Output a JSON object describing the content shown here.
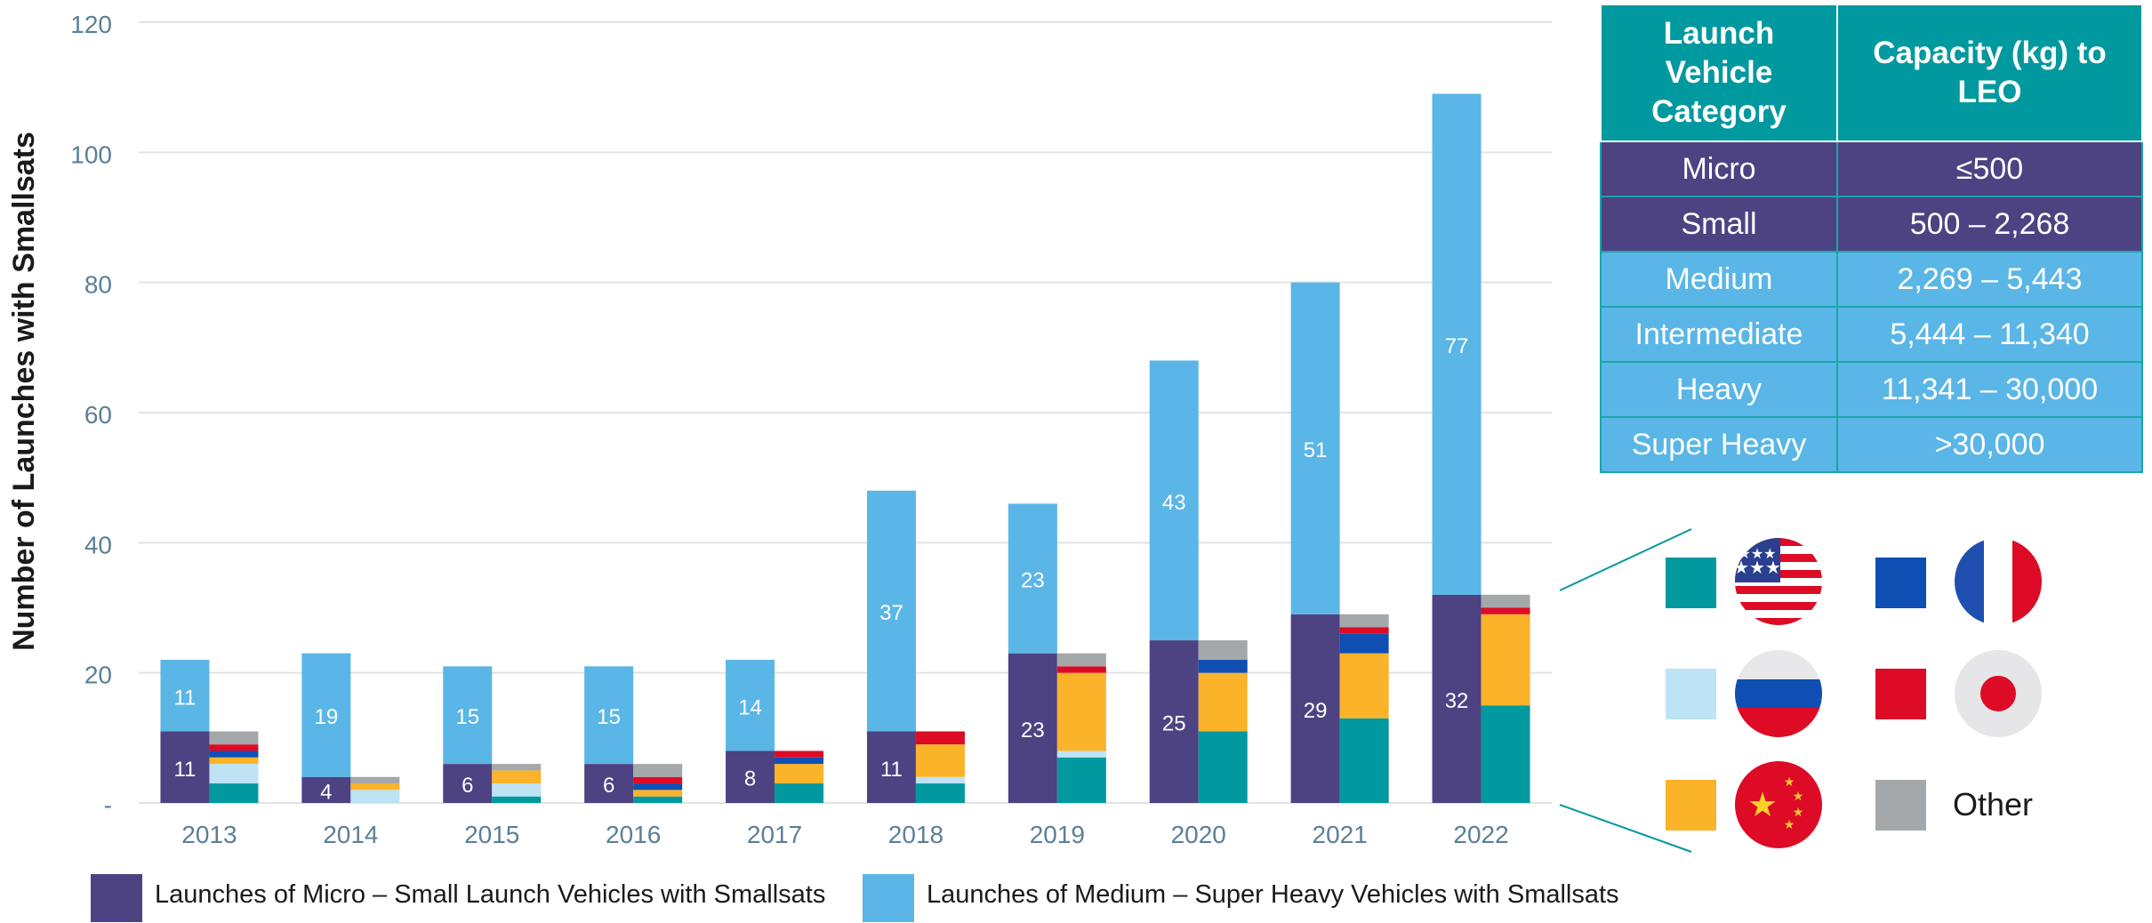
{
  "chart_data": {
    "type": "bar",
    "ylabel": "Number of Launches with Smallsats",
    "xlabel": "",
    "ylim": [
      0,
      120
    ],
    "yticks": [
      0,
      20,
      40,
      60,
      80,
      100,
      120
    ],
    "ytick_labels": [
      "-",
      "20",
      "40",
      "60",
      "80",
      "100",
      "120"
    ],
    "grid": true,
    "categories": [
      "2013",
      "2014",
      "2015",
      "2016",
      "2017",
      "2018",
      "2019",
      "2020",
      "2021",
      "2022"
    ],
    "stacked_series": [
      {
        "name": "Launches of Micro – Small Launch Vehicles with Smallsats",
        "color": "#4d4282",
        "values": [
          11,
          4,
          6,
          6,
          8,
          11,
          23,
          25,
          29,
          32
        ]
      },
      {
        "name": "Launches of Medium – Super Heavy Vehicles with Smallsats",
        "color": "#5ab6e6",
        "values": [
          11,
          19,
          15,
          15,
          14,
          37,
          23,
          43,
          51,
          77
        ]
      }
    ],
    "country_breakdown": [
      {
        "country": "USA",
        "color": "#00999f",
        "values": [
          3,
          0,
          1,
          1,
          3,
          3,
          7,
          11,
          13,
          15
        ]
      },
      {
        "country": "Russia",
        "color": "#bee3f5",
        "values": [
          3,
          2,
          2,
          0,
          0,
          1,
          1,
          0,
          0,
          0
        ]
      },
      {
        "country": "China",
        "color": "#fbb32a",
        "values": [
          1,
          1,
          2,
          1,
          3,
          5,
          12,
          9,
          10,
          14
        ]
      },
      {
        "country": "France",
        "color": "#0f4fb3",
        "values": [
          1,
          0,
          0,
          1,
          1,
          0,
          0,
          2,
          3,
          0
        ]
      },
      {
        "country": "Japan",
        "color": "#dd0b25",
        "values": [
          1,
          0,
          0,
          1,
          1,
          2,
          1,
          0,
          1,
          1
        ]
      },
      {
        "country": "Other",
        "color": "#a4a8ab",
        "values": [
          2,
          1,
          1,
          2,
          0,
          0,
          2,
          3,
          2,
          2
        ]
      }
    ],
    "data_labels": {
      "micro_small": [
        "11",
        "4",
        "6",
        "6",
        "8",
        "11",
        "23",
        "25",
        "29",
        "32"
      ],
      "medium_super_heavy": [
        "11",
        "19",
        "15",
        "15",
        "14",
        "37",
        "23",
        "43",
        "51",
        "77"
      ]
    },
    "legend": {
      "position": "bottom",
      "items": [
        {
          "label": "Launches of Micro – Small Launch Vehicles with Smallsats",
          "color": "#4d4282"
        },
        {
          "label": "Launches of Medium – Super Heavy Vehicles with Smallsats",
          "color": "#5ab6e6"
        }
      ]
    }
  },
  "capacity_table": {
    "headers": [
      "Launch Vehicle Category",
      "Capacity (kg) to LEO"
    ],
    "rows": [
      {
        "category": "Micro",
        "capacity": "≤500",
        "tone": "dark"
      },
      {
        "category": "Small",
        "capacity": "500 – 2,268",
        "tone": "dark"
      },
      {
        "category": "Medium",
        "capacity": "2,269 – 5,443",
        "tone": "light"
      },
      {
        "category": "Intermediate",
        "capacity": "5,444 – 11,340",
        "tone": "light"
      },
      {
        "category": "Heavy",
        "capacity": "11,341 – 30,000",
        "tone": "light"
      },
      {
        "category": "Super Heavy",
        "capacity": ">30,000",
        "tone": "light"
      }
    ]
  },
  "country_key": [
    {
      "country": "USA",
      "color": "#00999f",
      "flag": "us-flag-icon"
    },
    {
      "country": "France",
      "color": "#0f4fb3",
      "flag": "france-flag-icon"
    },
    {
      "country": "Russia",
      "color": "#bee3f5",
      "flag": "russia-flag-icon"
    },
    {
      "country": "Japan",
      "color": "#dd0b25",
      "flag": "japan-flag-icon"
    },
    {
      "country": "China",
      "color": "#fbb32a",
      "flag": "china-flag-icon"
    },
    {
      "country": "Other",
      "color": "#a4a8ab",
      "label": "Other"
    }
  ],
  "colors": {
    "axis_text": "#5b7f96",
    "grid": "#dfe3e6",
    "teal_header": "#00999f"
  }
}
